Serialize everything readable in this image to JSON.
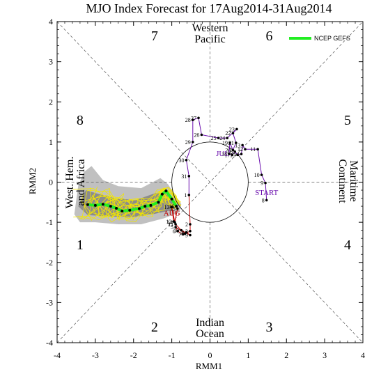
{
  "chart_data": {
    "type": "scatter",
    "title": "MJO Index Forecast for 17Aug2014-31Aug2014",
    "xlabel": "RMM1",
    "ylabel": "RMM2",
    "xlim": [
      -4,
      4
    ],
    "ylim": [
      -4,
      4
    ],
    "xticks": [
      "-4",
      "-3",
      "-2",
      "-1",
      "0",
      "1",
      "2",
      "3",
      "4"
    ],
    "yticks": [
      "-4",
      "-3",
      "-2",
      "-1",
      "0",
      "1",
      "2",
      "3",
      "4"
    ],
    "phases": [
      {
        "label": "1",
        "x": -3.4,
        "y": -1.55
      },
      {
        "label": "2",
        "x": -1.45,
        "y": -3.6
      },
      {
        "label": "3",
        "x": 1.55,
        "y": -3.6
      },
      {
        "label": "4",
        "x": 3.6,
        "y": -1.55
      },
      {
        "label": "5",
        "x": 3.6,
        "y": 1.55
      },
      {
        "label": "6",
        "x": 1.55,
        "y": 3.65
      },
      {
        "label": "7",
        "x": -1.45,
        "y": 3.65
      },
      {
        "label": "8",
        "x": -3.4,
        "y": 1.55
      }
    ],
    "regions": {
      "top": [
        "Western",
        "Pacific"
      ],
      "bottom": [
        "Indian",
        "Ocean"
      ],
      "left": [
        "West. Hem.",
        "and Africa"
      ],
      "right": [
        "Maritime",
        "Continent"
      ]
    },
    "legend": {
      "label": "NCEP GEFS",
      "color": "#22ee22",
      "position": "top-right"
    },
    "start_label": "START",
    "month_labels": [
      {
        "label": "JUL",
        "x": 0.33,
        "y": 0.65,
        "color": "#6a0dad"
      },
      {
        "label": "AUG",
        "x": -1.0,
        "y": -0.83,
        "color": "#c00000"
      }
    ],
    "observed": {
      "july_color": "#6a0dad",
      "august_color": "#c00000",
      "july": [
        {
          "d": "8",
          "x": 1.48,
          "y": -0.45
        },
        {
          "d": "9",
          "x": 1.45,
          "y": -0.02
        },
        {
          "d": "10",
          "x": 1.35,
          "y": 0.18
        },
        {
          "d": "11",
          "x": 1.25,
          "y": 0.82
        },
        {
          "d": "12",
          "x": 0.92,
          "y": 0.82
        },
        {
          "d": "13",
          "x": 0.85,
          "y": 0.92
        },
        {
          "d": "14",
          "x": 0.82,
          "y": 0.7
        },
        {
          "d": "15",
          "x": 0.72,
          "y": 0.68
        },
        {
          "d": "16",
          "x": 0.65,
          "y": 0.76
        },
        {
          "d": "17",
          "x": 0.58,
          "y": 0.68
        },
        {
          "d": "18",
          "x": 0.5,
          "y": 0.7
        },
        {
          "d": "19",
          "x": 0.52,
          "y": 0.98
        },
        {
          "d": "20",
          "x": 0.6,
          "y": 0.8
        },
        {
          "d": "21",
          "x": 0.68,
          "y": 0.98
        },
        {
          "d": "22",
          "x": 0.6,
          "y": 1.22
        },
        {
          "d": "23",
          "x": 0.7,
          "y": 1.32
        },
        {
          "d": "24",
          "x": 0.45,
          "y": 1.1
        },
        {
          "d": "25",
          "x": 0.22,
          "y": 1.1
        },
        {
          "d": "26",
          "x": -0.22,
          "y": 1.18
        },
        {
          "d": "27",
          "x": -0.3,
          "y": 1.6
        },
        {
          "d": "28",
          "x": -0.45,
          "y": 1.55
        },
        {
          "d": "29",
          "x": -0.45,
          "y": 1.0
        },
        {
          "d": "30",
          "x": -0.62,
          "y": 0.55
        },
        {
          "d": "31",
          "x": -0.55,
          "y": 0.15
        }
      ],
      "august": [
        {
          "d": "1",
          "x": -0.55,
          "y": -0.32
        },
        {
          "d": "2",
          "x": -0.52,
          "y": -1.05
        },
        {
          "d": "3",
          "x": -0.52,
          "y": -1.22
        },
        {
          "d": "4",
          "x": -0.65,
          "y": -1.28
        },
        {
          "d": "5",
          "x": -0.9,
          "y": -1.12
        },
        {
          "d": "6",
          "x": -0.85,
          "y": -1.22
        },
        {
          "d": "7",
          "x": -0.7,
          "y": -1.3
        },
        {
          "d": "8",
          "x": -0.62,
          "y": -1.25
        },
        {
          "d": "9",
          "x": -0.52,
          "y": -1.32
        },
        {
          "d": "10",
          "x": -0.75,
          "y": -1.2
        },
        {
          "d": "11",
          "x": -0.9,
          "y": -1.05
        },
        {
          "d": "12",
          "x": -0.95,
          "y": -0.98
        },
        {
          "d": "13",
          "x": -1.0,
          "y": -0.62
        },
        {
          "d": "14",
          "x": -0.92,
          "y": -1.0
        },
        {
          "d": "15",
          "x": -0.85,
          "y": -0.66
        },
        {
          "d": "16",
          "x": -0.88,
          "y": -0.6
        }
      ]
    },
    "forecast_mean": {
      "color": "#22ee22",
      "x": [
        -0.88,
        -1.0,
        -1.15,
        -1.25,
        -1.35,
        -1.55,
        -1.7,
        -1.85,
        -2.1,
        -2.3,
        -2.45,
        -2.6,
        -2.8,
        -3.0,
        -3.2
      ],
      "y": [
        -0.6,
        -0.42,
        -0.22,
        -0.3,
        -0.5,
        -0.58,
        -0.6,
        -0.66,
        -0.7,
        -0.72,
        -0.65,
        -0.6,
        -0.55,
        -0.58,
        -0.56
      ]
    },
    "forecast_spread_outer": {
      "color": "#c0c0c0",
      "x": [
        -0.75,
        -1.1,
        -1.3,
        -1.8,
        -2.4,
        -2.8,
        -3.1,
        -3.3,
        -3.45,
        -3.55,
        -3.4,
        -3.0,
        -2.4,
        -1.8,
        -1.2,
        -0.8
      ],
      "y": [
        -0.55,
        -0.05,
        0.1,
        -0.15,
        -0.1,
        0.05,
        0.4,
        0.25,
        -0.1,
        -0.8,
        -1.0,
        -1.0,
        -1.05,
        -1.05,
        -0.9,
        -0.75
      ]
    },
    "forecast_spread_inner": {
      "color": "#8c8c8c",
      "x": [
        -0.85,
        -1.2,
        -1.45,
        -1.95,
        -2.5,
        -2.9,
        -3.25,
        -3.45,
        -3.2,
        -2.7,
        -2.1,
        -1.5,
        -1.0
      ],
      "y": [
        -0.58,
        -0.25,
        -0.28,
        -0.45,
        -0.4,
        -0.3,
        -0.2,
        -0.6,
        -0.82,
        -0.85,
        -0.88,
        -0.8,
        -0.7
      ]
    },
    "ensemble_color": "#f2e600"
  }
}
